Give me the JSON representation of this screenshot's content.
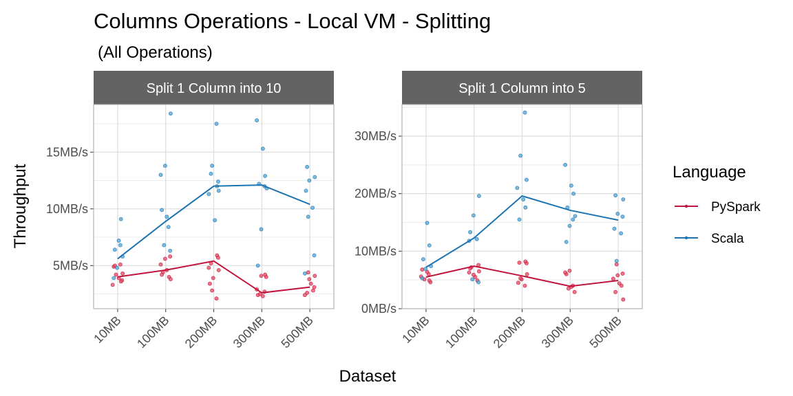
{
  "chart_data": {
    "type": "scatter",
    "title": "Columns Operations - Local VM - Splitting",
    "subtitle": "(All Operations)",
    "xlabel": "Dataset",
    "ylabel": "Throughput",
    "categories": [
      "10MB",
      "100MB",
      "200MB",
      "300MB",
      "500MB"
    ],
    "legend": {
      "title": "Language",
      "placement": "right",
      "entries": [
        "PySpark",
        "Scala"
      ]
    },
    "colors": {
      "PySpark": "#c0143c",
      "Scala": "#1a73b0",
      "PySpark_points": "#e8465f",
      "Scala_points": "#4fa3d1",
      "strip": "#636363"
    },
    "grid": true,
    "panels": [
      {
        "strip": "Split 1 Column into 10",
        "ylim": [
          1.2,
          19.2
        ],
        "yticks": [
          5,
          10,
          15
        ],
        "yticklabels": [
          "5MB/s",
          "10MB/s",
          "15MB/s"
        ],
        "series": [
          {
            "name": "PySpark",
            "line": [
              4.0,
              4.6,
              5.4,
              2.6,
              3.1
            ],
            "points": [
              [
                4.9,
                5.1,
                4.2,
                3.7,
                3.3,
                3.9,
                3.6,
                5.0,
                4.3
              ],
              [
                5.8,
                5.1,
                4.6,
                4.0,
                4.4,
                3.8,
                5.6,
                4.2
              ],
              [
                5.9,
                5.2,
                4.6,
                3.9,
                3.4,
                2.1,
                2.8,
                5.7,
                4.8
              ],
              [
                4.1,
                2.4,
                2.7,
                2.5,
                4.0,
                2.9,
                2.3,
                4.2
              ],
              [
                4.4,
                3.1,
                2.4,
                3.4,
                2.8,
                2.6,
                4.1,
                3.8
              ]
            ]
          },
          {
            "name": "Scala",
            "line": [
              5.6,
              8.9,
              12.0,
              12.1,
              10.4
            ],
            "points": [
              [
                7.2,
                9.1,
                6.4,
                5.8,
                4.8,
                3.9,
                6.8
              ],
              [
                18.4,
                13.8,
                9.9,
                8.4,
                6.8,
                6.3,
                13.0,
                9.3
              ],
              [
                17.5,
                13.8,
                12.4,
                11.3,
                9.0,
                12.0,
                13.1,
                11.6
              ],
              [
                17.8,
                15.3,
                12.9,
                12.2,
                11.8,
                8.2,
                5.0,
                12.0
              ],
              [
                13.7,
                12.8,
                12.5,
                11.6,
                10.1,
                9.3,
                5.9,
                4.3
              ]
            ]
          }
        ]
      },
      {
        "strip": "Split 1 Column into 5",
        "ylim": [
          0,
          35.5
        ],
        "yticks": [
          0,
          10,
          20,
          30
        ],
        "yticklabels": [
          "0MB/s",
          "10MB/s",
          "20MB/s",
          "30MB/s"
        ],
        "series": [
          {
            "name": "PySpark",
            "line": [
              5.5,
              7.4,
              5.7,
              3.9,
              4.9
            ],
            "points": [
              [
                6.8,
                6.0,
                5.1,
                4.6,
                5.6,
                6.4,
                4.9
              ],
              [
                7.6,
                6.3,
                5.5,
                4.9,
                7.2,
                6.5,
                5.9,
                7.0
              ],
              [
                8.2,
                8.0,
                6.0,
                5.1,
                4.5,
                4.0,
                5.3,
                7.9
              ],
              [
                6.6,
                6.0,
                4.0,
                3.5,
                2.9,
                6.3,
                3.8
              ],
              [
                7.7,
                6.1,
                5.2,
                4.4,
                4.0,
                2.9,
                1.6,
                5.8
              ]
            ]
          },
          {
            "name": "Scala",
            "line": [
              7.2,
              12.3,
              19.6,
              17.1,
              15.4
            ],
            "points": [
              [
                14.9,
                11.0,
                8.6,
                7.4,
                6.9,
                5.3
              ],
              [
                19.6,
                16.2,
                13.3,
                12.1,
                5.1,
                4.6,
                11.8
              ],
              [
                34.1,
                26.6,
                22.4,
                21.0,
                19.0,
                17.6,
                15.5
              ],
              [
                25.0,
                21.4,
                20.0,
                17.6,
                16.1,
                14.4,
                11.6,
                15.5
              ],
              [
                19.7,
                19.0,
                16.5,
                13.9,
                13.1,
                8.3,
                16.0
              ]
            ]
          }
        ]
      }
    ]
  }
}
